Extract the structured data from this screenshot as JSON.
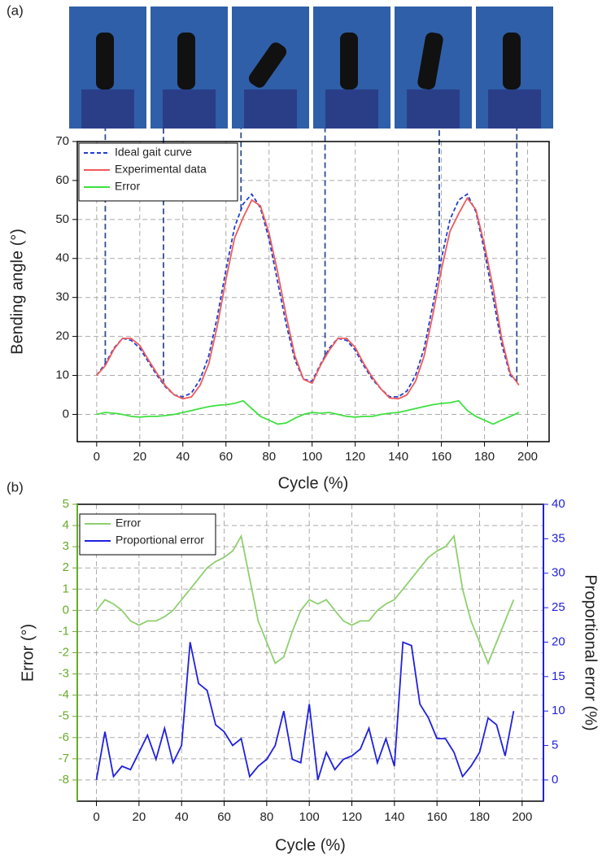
{
  "chart_data": [
    {
      "type": "line",
      "label": "(a)",
      "xlabel": "Cycle (%)",
      "ylabel": "Bending angle (°)",
      "x": [
        0,
        4,
        8,
        12,
        16,
        20,
        24,
        28,
        32,
        36,
        40,
        44,
        48,
        52,
        56,
        60,
        64,
        68,
        72,
        76,
        80,
        84,
        88,
        92,
        96,
        100,
        104,
        108,
        112,
        116,
        120,
        124,
        128,
        132,
        136,
        140,
        144,
        148,
        152,
        156,
        160,
        164,
        168,
        172,
        176,
        180,
        184,
        188,
        192,
        196
      ],
      "series": [
        {
          "name": "Ideal gait curve",
          "color": "#1f3fd0",
          "style": "dashed",
          "values": [
            10,
            13,
            17,
            19.5,
            19,
            17,
            13.5,
            10,
            7,
            5,
            4.5,
            5.5,
            9,
            15,
            25,
            37,
            48,
            54,
            56.5,
            53,
            45,
            34,
            23,
            14,
            9,
            8.5,
            13,
            17,
            19.5,
            19,
            16.5,
            12.5,
            9,
            6.5,
            4.5,
            4.5,
            6,
            10,
            17,
            28,
            40,
            50,
            55,
            56.5,
            52,
            42,
            30,
            18,
            10,
            8
          ]
        },
        {
          "name": "Experimental data",
          "color": "#f05a5a",
          "style": "solid",
          "values": [
            10,
            12.5,
            16.7,
            19.5,
            19.5,
            17.7,
            14,
            10.5,
            7.3,
            5,
            4,
            4.5,
            7.5,
            13,
            22.7,
            34.5,
            45.2,
            50.5,
            55,
            53.5,
            46.5,
            36.5,
            25.2,
            15,
            9,
            8,
            12.7,
            16.5,
            19.5,
            19.5,
            17.2,
            13,
            9.5,
            6.5,
            4.2,
            4,
            5,
            8.5,
            15,
            25.5,
            37.2,
            47,
            51.5,
            55.5,
            52.5,
            43.5,
            32.5,
            19.5,
            10.5,
            7.5
          ]
        },
        {
          "name": "Error",
          "color": "#3ee03e",
          "style": "solid",
          "values": [
            0,
            0.5,
            0.3,
            0,
            -0.5,
            -0.7,
            -0.5,
            -0.5,
            -0.3,
            0,
            0.5,
            1,
            1.5,
            2,
            2.3,
            2.5,
            2.8,
            3.5,
            1.5,
            -0.5,
            -1.5,
            -2.5,
            -2.2,
            -1,
            0,
            0.5,
            0.3,
            0.5,
            0,
            -0.5,
            -0.7,
            -0.5,
            -0.5,
            0,
            0.3,
            0.5,
            1,
            1.5,
            2,
            2.5,
            2.8,
            3,
            3.5,
            1,
            -0.5,
            -1.5,
            -2.5,
            -1.5,
            -0.5,
            0.5
          ]
        }
      ],
      "reference_x": [
        4,
        31,
        67,
        106,
        159,
        195
      ],
      "reference_color": "#2f4f8f",
      "xlim": [
        -9,
        210
      ],
      "xticks": [
        0,
        20,
        40,
        60,
        80,
        100,
        120,
        140,
        160,
        180,
        200
      ],
      "ylim": [
        -7,
        70
      ],
      "yticks": [
        0,
        10,
        20,
        30,
        40,
        50,
        60,
        70
      ],
      "grid": true
    },
    {
      "type": "line",
      "label": "(b)",
      "xlabel": "Cycle (%)",
      "ylabel": "Error (°)",
      "y2label": "Proportional error (%)",
      "ycolor": "#6aaa2a",
      "y2color": "#2020e0",
      "x": [
        0,
        4,
        8,
        12,
        16,
        20,
        24,
        28,
        32,
        36,
        40,
        44,
        48,
        52,
        56,
        60,
        64,
        68,
        72,
        76,
        80,
        84,
        88,
        92,
        96,
        100,
        104,
        108,
        112,
        116,
        120,
        124,
        128,
        132,
        136,
        140,
        144,
        148,
        152,
        156,
        160,
        164,
        168,
        172,
        176,
        180,
        184,
        188,
        192,
        196
      ],
      "series": [
        {
          "name": "Error",
          "color": "#8fcf6f",
          "style": "solid",
          "values": [
            0,
            0.5,
            0.3,
            0,
            -0.5,
            -0.7,
            -0.5,
            -0.5,
            -0.3,
            0,
            0.5,
            1,
            1.5,
            2,
            2.3,
            2.5,
            2.8,
            3.5,
            1.5,
            -0.5,
            -1.5,
            -2.5,
            -2.2,
            -1,
            0,
            0.5,
            0.3,
            0.5,
            0,
            -0.5,
            -0.7,
            -0.5,
            -0.5,
            0,
            0.3,
            0.5,
            1,
            1.5,
            2,
            2.5,
            2.8,
            3,
            3.5,
            1,
            -0.5,
            -1.5,
            -2.5,
            -1.5,
            -0.5,
            0.5
          ]
        },
        {
          "name": "Proportional error",
          "color": "#2020e0",
          "style": "solid",
          "axis": "y2",
          "values": [
            0,
            7,
            0.5,
            2,
            1.5,
            4,
            6.5,
            3,
            7.5,
            2.5,
            5,
            20,
            14,
            13,
            8,
            7,
            5,
            6,
            0.5,
            2,
            3,
            5,
            10,
            3,
            2.5,
            11,
            0,
            4,
            1.5,
            3,
            3.5,
            4.5,
            7.5,
            2.5,
            6,
            2,
            20,
            19.5,
            11,
            9,
            6,
            6,
            4,
            0.5,
            2,
            4,
            9,
            8,
            3.5,
            10
          ]
        }
      ],
      "xlim": [
        -9,
        210
      ],
      "xticks": [
        0,
        20,
        40,
        60,
        80,
        100,
        120,
        140,
        160,
        180,
        200
      ],
      "ylim": [
        -9,
        5
      ],
      "yticks": [
        -8,
        -7,
        -6,
        -5,
        -4,
        -3,
        -2,
        -1,
        0,
        1,
        2,
        3,
        4,
        5
      ],
      "y2lim": [
        -3.08,
        40
      ],
      "y2ticks": [
        0,
        5,
        10,
        15,
        20,
        25,
        30,
        35,
        40
      ],
      "grid": true
    }
  ]
}
